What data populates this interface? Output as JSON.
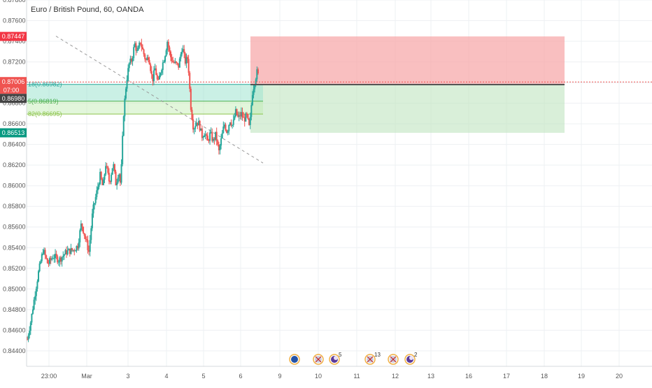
{
  "title": "Euro / British Pound, 60, OANDA",
  "colors": {
    "up": "#26a69a",
    "down": "#ef5350",
    "candle_body": "#4a4a4a",
    "grid": "#eef0f3",
    "axis_text": "#555555",
    "stop_zone": "#f7a9ab",
    "target_zone": "#bfe5bf",
    "fib_zone": "#9fe3d0",
    "trend_dash": "#999999"
  },
  "price_labels": {
    "stop": "0.87447",
    "last": "0.87006",
    "countdown": "07:00",
    "entry": "0.86980",
    "target": "0.86513"
  },
  "fib_levels": [
    {
      "text": "18(0.86982)",
      "price": 0.86982
    },
    {
      "text": "5(0.86819)",
      "price": 0.86819
    },
    {
      "text": "82(0.86695)",
      "price": 0.86695
    }
  ],
  "events": [
    {
      "type": "eu-flag",
      "badge": ""
    },
    {
      "type": "uk-flag",
      "badge": ""
    },
    {
      "type": "earnings",
      "badge": "5"
    },
    {
      "type": "uk-flag",
      "badge": "13"
    },
    {
      "type": "uk-flag",
      "badge": ""
    },
    {
      "type": "earnings",
      "badge": "2"
    }
  ],
  "chart_data": {
    "type": "candlestick",
    "title": "Euro / British Pound, 60, OANDA",
    "ylim": [
      0.8425,
      0.878
    ],
    "y_ticks": [
      "0.87800",
      "0.87600",
      "0.87400",
      "0.87200",
      "0.87000",
      "0.86800",
      "0.86600",
      "0.86400",
      "0.86200",
      "0.86000",
      "0.85800",
      "0.85600",
      "0.85400",
      "0.85200",
      "0.85000",
      "0.84800",
      "0.84600",
      "0.84400"
    ],
    "x_ticks": [
      "23:00",
      "Mar",
      "3",
      "4",
      "5",
      "6",
      "9",
      "10",
      "11",
      "12",
      "13",
      "16",
      "17",
      "18",
      "19",
      "20"
    ],
    "grid": true,
    "ohlc_path": [
      [
        0,
        0.8451
      ],
      [
        4,
        0.847
      ],
      [
        8,
        0.8494
      ],
      [
        12,
        0.8516
      ],
      [
        17,
        0.8538
      ],
      [
        22,
        0.8524
      ],
      [
        28,
        0.8532
      ],
      [
        34,
        0.8528
      ],
      [
        42,
        0.8536
      ],
      [
        50,
        0.8538
      ],
      [
        54,
        0.8542
      ],
      [
        58,
        0.8564
      ],
      [
        62,
        0.855
      ],
      [
        66,
        0.8536
      ],
      [
        70,
        0.8575
      ],
      [
        74,
        0.8592
      ],
      [
        78,
        0.861
      ],
      [
        81,
        0.8598
      ],
      [
        84,
        0.8621
      ],
      [
        88,
        0.8603
      ],
      [
        92,
        0.8622
      ],
      [
        95,
        0.8601
      ],
      [
        98,
        0.8615
      ],
      [
        100,
        0.86
      ],
      [
        103,
        0.8668
      ],
      [
        106,
        0.87
      ],
      [
        109,
        0.8718
      ],
      [
        112,
        0.8722
      ],
      [
        115,
        0.8738
      ],
      [
        118,
        0.8728
      ],
      [
        121,
        0.874
      ],
      [
        124,
        0.873
      ],
      [
        127,
        0.8721
      ],
      [
        130,
        0.8726
      ],
      [
        134,
        0.8702
      ],
      [
        137,
        0.8714
      ],
      [
        140,
        0.8698
      ],
      [
        143,
        0.8712
      ],
      [
        147,
        0.8725
      ],
      [
        150,
        0.874
      ],
      [
        153,
        0.8726
      ],
      [
        156,
        0.872
      ],
      [
        159,
        0.8718
      ],
      [
        162,
        0.8716
      ],
      [
        166,
        0.8735
      ],
      [
        169,
        0.872
      ],
      [
        172,
        0.8724
      ],
      [
        175,
        0.8678
      ],
      [
        178,
        0.8655
      ],
      [
        181,
        0.8662
      ],
      [
        184,
        0.866
      ],
      [
        187,
        0.8648
      ],
      [
        190,
        0.8652
      ],
      [
        193,
        0.8642
      ],
      [
        196,
        0.8651
      ],
      [
        199,
        0.8643
      ],
      [
        202,
        0.865
      ],
      [
        205,
        0.8632
      ],
      [
        208,
        0.8646
      ],
      [
        211,
        0.866
      ],
      [
        214,
        0.8652
      ],
      [
        217,
        0.8664
      ],
      [
        220,
        0.8658
      ],
      [
        223,
        0.8672
      ],
      [
        226,
        0.8665
      ],
      [
        229,
        0.867
      ],
      [
        232,
        0.8664
      ],
      [
        235,
        0.8668
      ],
      [
        238,
        0.8655
      ],
      [
        241,
        0.869
      ],
      [
        244,
        0.8703
      ],
      [
        246,
        0.871
      ],
      [
        248,
        0.8705
      ]
    ],
    "trendline": {
      "from": [
        0.0,
        0.8745
      ],
      "to": [
        257.0,
        0.8622
      ]
    },
    "position": {
      "entry": 0.8698,
      "stop": 0.87447,
      "target": 0.86513
    }
  }
}
